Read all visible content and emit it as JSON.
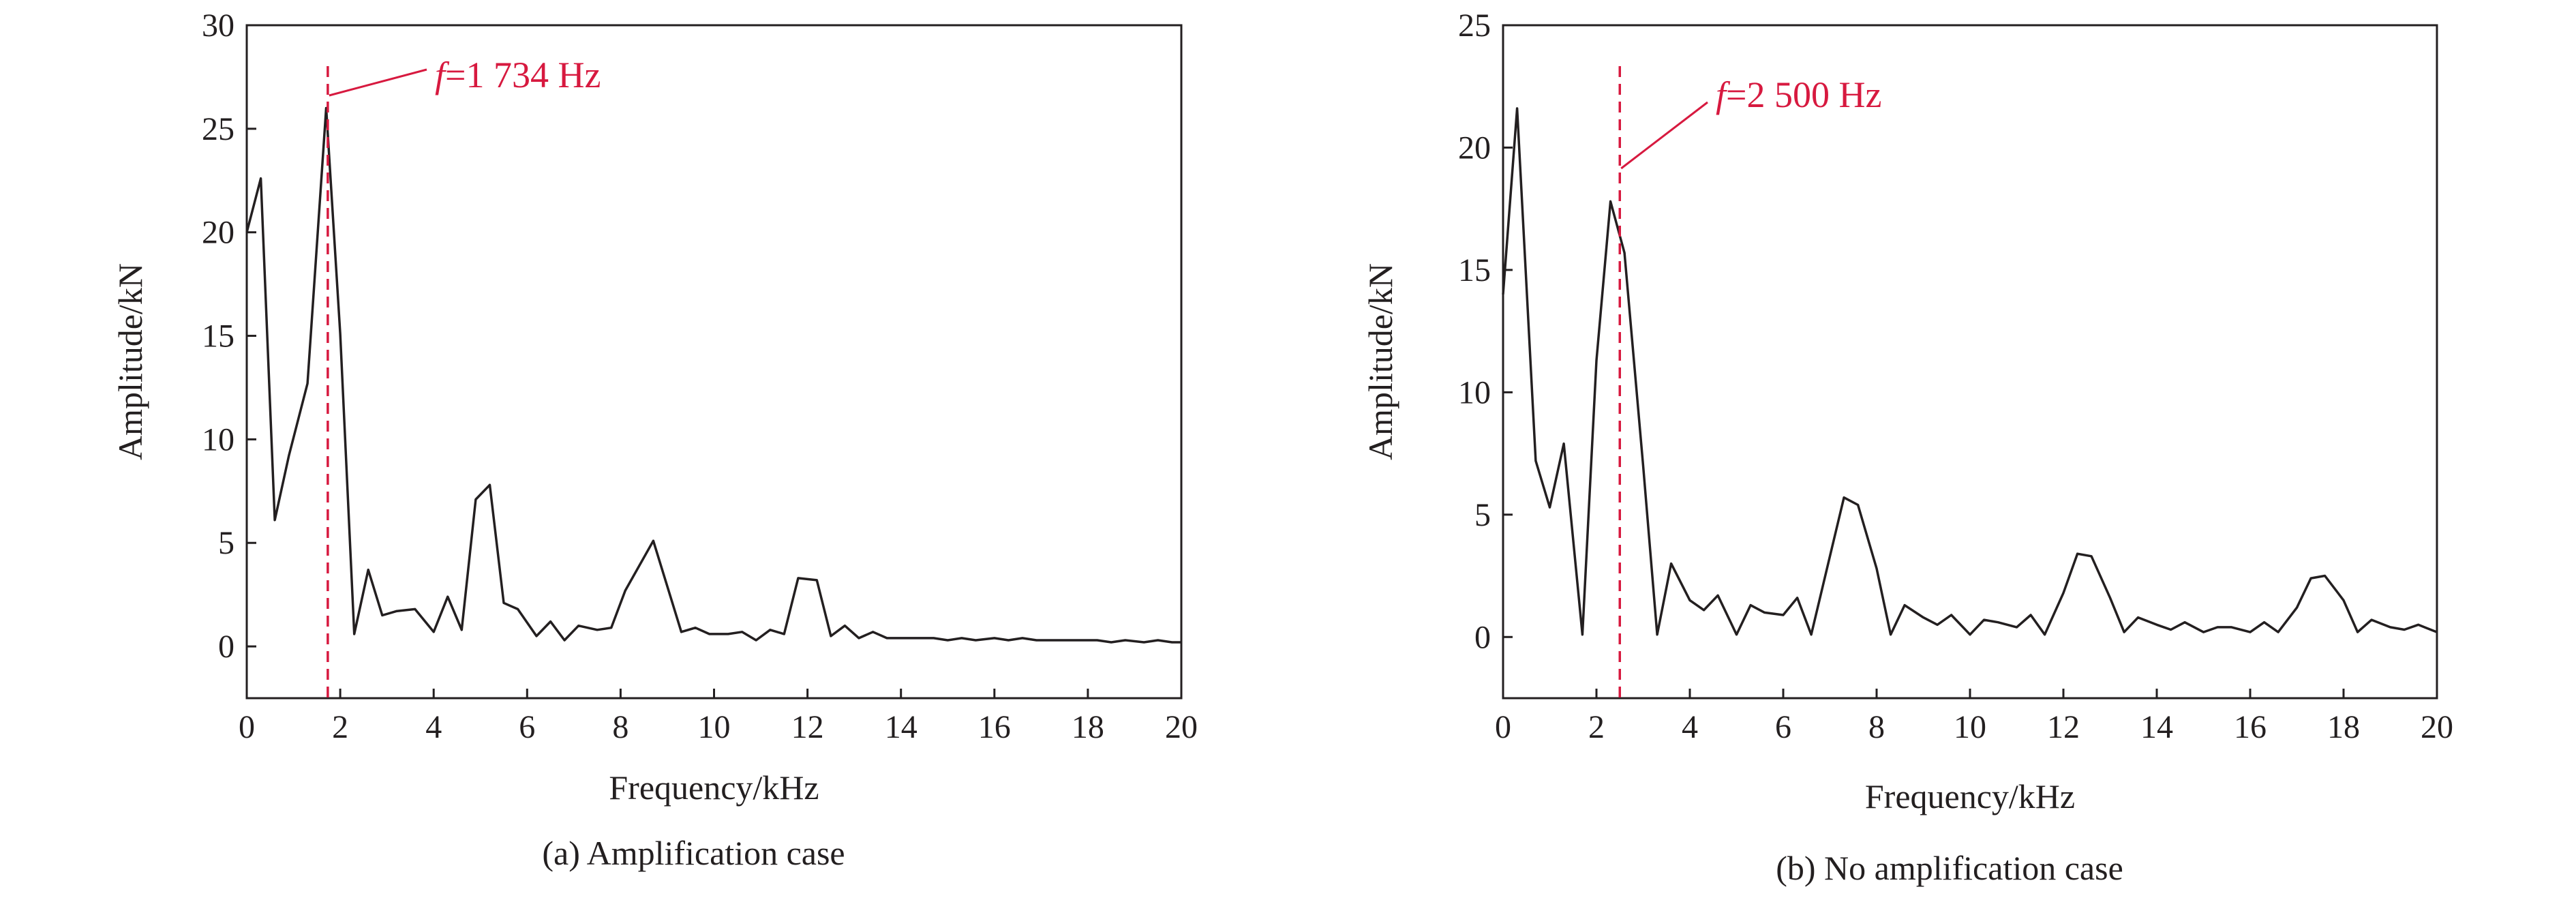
{
  "chart_data": [
    {
      "type": "line",
      "caption": "(a) Amplification case",
      "xlabel": "Frequency/kHz",
      "ylabel": "Amplitude/kN",
      "xlim": [
        0,
        20
      ],
      "ylim": [
        -2.5,
        30
      ],
      "xticks": [
        0,
        2,
        4,
        6,
        8,
        10,
        12,
        14,
        16,
        18,
        20
      ],
      "yticks": [
        0,
        5,
        10,
        15,
        20,
        25,
        30
      ],
      "marker": {
        "x": 1.734,
        "label_italic": "f",
        "label_rest": "=1 734 Hz"
      },
      "series": [
        {
          "x": [
            0,
            0.3,
            0.6,
            0.9,
            1.3,
            1.7,
            2.0,
            2.3,
            2.6,
            2.9,
            3.2,
            3.6,
            4.0,
            4.3,
            4.6,
            4.9,
            5.2,
            5.5,
            5.8,
            6.2,
            6.5,
            6.8,
            7.1,
            7.5,
            7.8,
            8.1,
            8.7,
            9.3,
            9.6,
            9.9,
            10.3,
            10.6,
            10.9,
            11.2,
            11.5,
            11.8,
            12.2,
            12.5,
            12.8,
            13.1,
            13.4,
            13.7,
            14.0,
            14.4,
            14.7,
            15.0,
            15.3,
            15.6,
            16.0,
            16.3,
            16.6,
            16.9,
            17.2,
            17.6,
            17.9,
            18.2,
            18.5,
            18.8,
            19.2,
            19.5,
            19.8,
            20.0
          ],
          "y": [
            20.0,
            22.6,
            6.1,
            9.2,
            12.7,
            26.0,
            15.1,
            0.6,
            3.7,
            1.5,
            1.7,
            1.8,
            0.7,
            2.4,
            0.8,
            7.1,
            7.8,
            2.1,
            1.8,
            0.5,
            1.2,
            0.3,
            1.0,
            0.8,
            0.9,
            2.7,
            5.1,
            0.7,
            0.9,
            0.6,
            0.6,
            0.7,
            0.3,
            0.8,
            0.6,
            3.3,
            3.2,
            0.5,
            1.0,
            0.4,
            0.7,
            0.4,
            0.4,
            0.4,
            0.4,
            0.3,
            0.4,
            0.3,
            0.4,
            0.3,
            0.4,
            0.3,
            0.3,
            0.3,
            0.3,
            0.3,
            0.2,
            0.3,
            0.2,
            0.3,
            0.2,
            0.2
          ]
        }
      ]
    },
    {
      "type": "line",
      "caption": "(b) No amplification case",
      "xlabel": "Frequency/kHz",
      "ylabel": "Amplitude/kN",
      "xlim": [
        0,
        20
      ],
      "ylim": [
        -2.5,
        25
      ],
      "xticks": [
        0,
        2,
        4,
        6,
        8,
        10,
        12,
        14,
        16,
        18,
        20
      ],
      "yticks": [
        0,
        5,
        10,
        15,
        20,
        25
      ],
      "marker": {
        "x": 2.5,
        "label_italic": "f",
        "label_rest": "=2 500 Hz"
      },
      "series": [
        {
          "x": [
            0,
            0.3,
            0.7,
            1.0,
            1.3,
            1.7,
            2.0,
            2.3,
            2.6,
            3.0,
            3.3,
            3.6,
            4.0,
            4.3,
            4.6,
            5.0,
            5.3,
            5.6,
            6.0,
            6.3,
            6.6,
            7.0,
            7.3,
            7.6,
            8.0,
            8.3,
            8.6,
            9.0,
            9.3,
            9.6,
            10.0,
            10.3,
            10.6,
            11.0,
            11.3,
            11.6,
            12.0,
            12.3,
            12.6,
            13.0,
            13.3,
            13.6,
            14.0,
            14.3,
            14.6,
            15.0,
            15.3,
            15.6,
            16.0,
            16.3,
            16.6,
            17.0,
            17.3,
            17.6,
            18.0,
            18.3,
            18.6,
            19.0,
            19.3,
            19.6,
            20.0
          ],
          "y": [
            14.0,
            21.6,
            7.2,
            5.3,
            7.9,
            0.1,
            11.3,
            17.8,
            15.7,
            7.0,
            0.1,
            3.0,
            1.5,
            1.1,
            1.7,
            0.1,
            1.3,
            1.0,
            0.9,
            1.6,
            0.1,
            3.3,
            5.7,
            5.4,
            2.8,
            0.1,
            1.3,
            0.8,
            0.5,
            0.9,
            0.1,
            0.7,
            0.6,
            0.4,
            0.9,
            0.1,
            1.8,
            3.4,
            3.3,
            1.6,
            0.2,
            0.8,
            0.5,
            0.3,
            0.6,
            0.2,
            0.4,
            0.4,
            0.2,
            0.6,
            0.2,
            1.2,
            2.4,
            2.5,
            1.5,
            0.2,
            0.7,
            0.4,
            0.3,
            0.5,
            0.2
          ]
        }
      ]
    }
  ]
}
